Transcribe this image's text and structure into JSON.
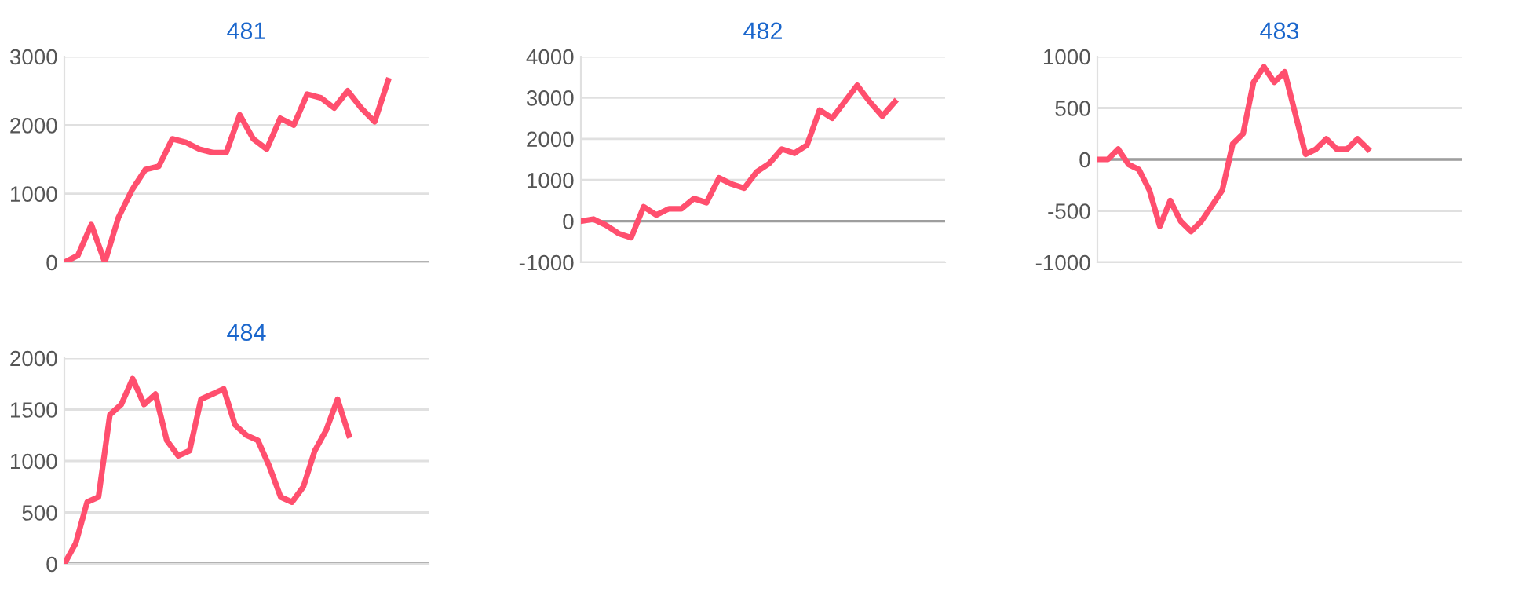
{
  "chart_data": [
    {
      "type": "line",
      "title": "481",
      "categories": [
        null,
        null,
        null,
        null,
        null,
        null,
        null,
        null,
        null,
        null,
        null,
        null,
        null,
        null,
        null,
        null,
        null,
        null,
        null,
        null,
        null,
        null,
        null,
        null,
        null,
        null,
        null,
        null
      ],
      "series": [
        {
          "color": "#ff4f6e",
          "values": [
            0,
            100,
            550,
            0,
            650,
            1050,
            1350,
            1400,
            1800,
            1750,
            1650,
            1600,
            1600,
            2150,
            1800,
            1650,
            2100,
            2000,
            2450,
            2400,
            2250,
            2500,
            2250,
            2050,
            2650,
            null,
            null,
            null
          ]
        }
      ],
      "ylim": [
        0,
        3000
      ],
      "yticks": [
        0,
        1000,
        2000,
        3000
      ],
      "grid": "y",
      "ref_lines": [
        {
          "axis": "y",
          "value": 0,
          "color": "#9e9e9e"
        }
      ],
      "tick_labels": "y"
    },
    {
      "type": "line",
      "title": "482",
      "categories": [
        null,
        null,
        null,
        null,
        null,
        null,
        null,
        null,
        null,
        null,
        null,
        null,
        null,
        null,
        null,
        null,
        null,
        null,
        null,
        null,
        null,
        null,
        null,
        null,
        null,
        null,
        null,
        null,
        null,
        null
      ],
      "series": [
        {
          "color": "#ff4f6e",
          "values": [
            0,
            50,
            -100,
            -300,
            -400,
            350,
            150,
            300,
            300,
            550,
            450,
            1050,
            900,
            800,
            1200,
            1400,
            1750,
            1650,
            1850,
            2700,
            2500,
            2900,
            3300,
            2900,
            2550,
            2900,
            null,
            null,
            null,
            null
          ]
        }
      ],
      "ylim": [
        -1000,
        4000
      ],
      "yticks": [
        -1000,
        0,
        1000,
        2000,
        3000,
        4000
      ],
      "grid": "y",
      "ref_lines": [
        {
          "axis": "y",
          "value": 0,
          "color": "#9e9e9e"
        }
      ],
      "tick_labels": "y"
    },
    {
      "type": "line",
      "title": "483",
      "categories": [
        null,
        null,
        null,
        null,
        null,
        null,
        null,
        null,
        null,
        null,
        null,
        null,
        null,
        null,
        null,
        null,
        null,
        null,
        null,
        null,
        null,
        null,
        null,
        null,
        null,
        null,
        null,
        null,
        null,
        null,
        null,
        null,
        null,
        null,
        null,
        null
      ],
      "series": [
        {
          "color": "#ff4f6e",
          "values": [
            0,
            0,
            100,
            -50,
            -100,
            -300,
            -650,
            -400,
            -600,
            -700,
            -600,
            -450,
            -300,
            150,
            250,
            750,
            900,
            750,
            850,
            450,
            50,
            100,
            200,
            100,
            100,
            200,
            100,
            null,
            null,
            null,
            null,
            null,
            null,
            null,
            null,
            null
          ]
        }
      ],
      "ylim": [
        -1000,
        1000
      ],
      "yticks": [
        -1000,
        -500,
        0,
        500,
        1000
      ],
      "grid": "y",
      "ref_lines": [
        {
          "axis": "y",
          "value": 0,
          "color": "#9e9e9e"
        }
      ],
      "tick_labels": "y"
    },
    {
      "type": "line",
      "title": "484",
      "categories": [
        null,
        null,
        null,
        null,
        null,
        null,
        null,
        null,
        null,
        null,
        null,
        null,
        null,
        null,
        null,
        null,
        null,
        null,
        null,
        null,
        null,
        null,
        null,
        null,
        null,
        null,
        null,
        null,
        null,
        null,
        null,
        null,
        null
      ],
      "series": [
        {
          "color": "#ff4f6e",
          "values": [
            0,
            200,
            600,
            650,
            1450,
            1550,
            1800,
            1550,
            1650,
            1200,
            1050,
            1100,
            1600,
            1650,
            1700,
            1350,
            1250,
            1200,
            950,
            650,
            600,
            750,
            1100,
            1300,
            1600,
            1250,
            null,
            null,
            null,
            null,
            null,
            null,
            null
          ]
        }
      ],
      "ylim": [
        0,
        2000
      ],
      "yticks": [
        0,
        500,
        1000,
        1500,
        2000
      ],
      "grid": "y",
      "ref_lines": [
        {
          "axis": "y",
          "value": 0,
          "color": "#9e9e9e"
        }
      ],
      "tick_labels": "y"
    }
  ]
}
